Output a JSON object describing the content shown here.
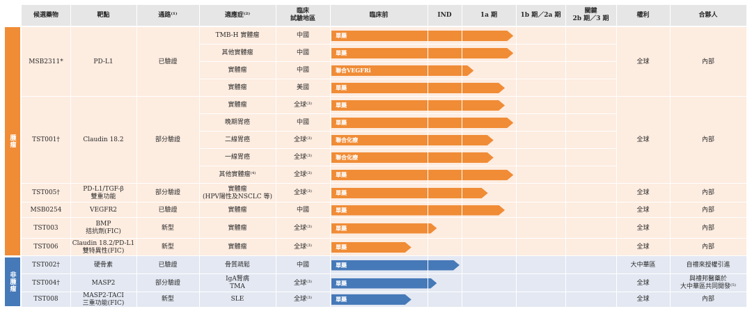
{
  "headers": [
    "候選藥物",
    "靶點",
    "通路⁽¹⁾",
    "適應症⁽²⁾",
    "臨床\n試驗地區",
    "臨床前",
    "IND",
    "1a 期",
    "1b 期／2a 期",
    "關鍵\n2b 期／3 期",
    "權利",
    "合夥人"
  ],
  "groups": [
    {
      "label": "腫瘤",
      "color": "#f08c36"
    },
    {
      "label": "非腫瘤",
      "color": "#4679b8"
    }
  ],
  "candidates": [
    {
      "name": "MSB2311*",
      "target": "PD-L1",
      "pathway": "已驗證",
      "rights": "全球",
      "partner": "內部",
      "group": 0,
      "rows": [
        {
          "indication": "TMB-H 實體瘤",
          "region": "中國",
          "label": "單藥",
          "progress": 0.47
        },
        {
          "indication": "其他實體瘤",
          "region": "中國",
          "label": "單藥",
          "progress": 0.47
        },
        {
          "indication": "實體瘤",
          "region": "中國",
          "label": "聯合VEGFRi",
          "progress": 0.33
        },
        {
          "indication": "實體瘤",
          "region": "美國",
          "label": "單藥",
          "progress": 0.44
        }
      ]
    },
    {
      "name": "TST001†",
      "target": "Claudin 18.2",
      "pathway": "部分驗證",
      "rights": "全球",
      "partner": "內部",
      "group": 0,
      "rows": [
        {
          "indication": "實體瘤",
          "region": "全球⁽³⁾",
          "label": "單藥",
          "progress": 0.44
        },
        {
          "indication": "晚期胃癌",
          "region": "中國",
          "label": "單藥",
          "progress": 0.47
        },
        {
          "indication": "二線胃癌",
          "region": "全球⁽³⁾",
          "label": "聯合化療",
          "progress": 0.4
        },
        {
          "indication": "一線胃癌",
          "region": "全球⁽³⁾",
          "label": "聯合化療",
          "progress": 0.4
        },
        {
          "indication": "其他實體瘤⁽⁴⁾",
          "region": "全球⁽³⁾",
          "label": "單藥",
          "progress": 0.47
        }
      ]
    },
    {
      "name": "TST005†",
      "target": "PD-L1/TGF-β\n雙重功能",
      "pathway": "部分驗證",
      "rights": "全球",
      "partner": "內部",
      "group": 0,
      "rows": [
        {
          "indication": "實體瘤\n(HPV陽性及NSCLC 等)",
          "region": "全球⁽³⁾",
          "label": "單藥",
          "progress": 0.38
        }
      ]
    },
    {
      "name": "MSB0254",
      "target": "VEGFR2",
      "pathway": "已驗證",
      "rights": "全球",
      "partner": "內部",
      "group": 0,
      "rows": [
        {
          "indication": "實體瘤",
          "region": "中國",
          "label": "單藥",
          "progress": 0.44
        }
      ]
    },
    {
      "name": "TST003",
      "target": "BMP\n拮抗劑(FIC)",
      "pathway": "新型",
      "rights": "全球",
      "partner": "內部",
      "group": 0,
      "rows": [
        {
          "indication": "實體瘤",
          "region": "全球⁽³⁾",
          "label": "單藥",
          "progress": 0.2
        }
      ]
    },
    {
      "name": "TST006",
      "target": "Claudin 18.2/PD-L1\n雙特異性(FIC)",
      "pathway": "新型",
      "rights": "全球",
      "partner": "內部",
      "group": 0,
      "rows": [
        {
          "indication": "實體瘤",
          "region": "全球⁽³⁾",
          "label": "單藥",
          "progress": 0.11
        }
      ]
    },
    {
      "name": "TST002†",
      "target": "硬骨素",
      "pathway": "已驗證",
      "rights": "大中華區",
      "partner": "自禮來授權引進",
      "group": 1,
      "rows": [
        {
          "indication": "骨質疏鬆",
          "region": "中國",
          "label": "單藥",
          "progress": 0.28
        }
      ]
    },
    {
      "name": "TST004†",
      "target": "MASP2",
      "pathway": "部分驗證",
      "rights": "全球",
      "partner": "與禮邦醫藥於\n大中華區共同開發⁽⁵⁾",
      "group": 1,
      "rows": [
        {
          "indication": "IgA腎病\nTMA",
          "region": "全球⁽³⁾",
          "label": "單藥",
          "progress": 0.2
        }
      ]
    },
    {
      "name": "TST008",
      "target": "MASP2-TACI\n三重功能(FIC)",
      "pathway": "新型",
      "rights": "全球",
      "partner": "內部",
      "group": 1,
      "rows": [
        {
          "indication": "SLE",
          "region": "全球⁽³⁾",
          "label": "單藥",
          "progress": 0.11
        }
      ]
    }
  ]
}
